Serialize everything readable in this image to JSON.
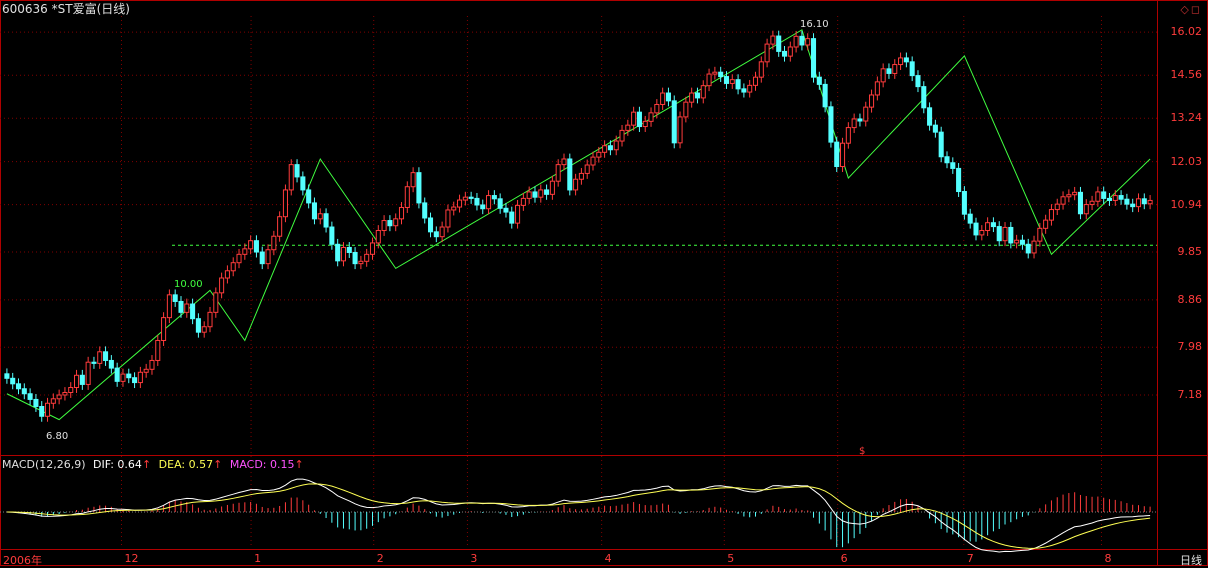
{
  "window": {
    "title": "600636 *ST爱富(日线)",
    "buttons": "◇◻",
    "period_label": "日线"
  },
  "price_axis": {
    "ticks": [
      "16.02",
      "14.56",
      "13.24",
      "12.03",
      "10.94",
      "9.85",
      "8.86",
      "7.98",
      "7.18"
    ],
    "min": 6.8,
    "max": 16.1,
    "log_scale": true
  },
  "time_axis": {
    "ticks": [
      "2006年",
      "12",
      "1",
      "2",
      "3",
      "4",
      "5",
      "6",
      "7",
      "8"
    ]
  },
  "annotations": {
    "reference_line_label": "10.00",
    "low_label": "6.80",
    "high_label": "16.10",
    "marker": "$"
  },
  "macd": {
    "name": "MACD(12,26,9)",
    "dif_label": "DIF: 0.64",
    "dea_label": "DEA: 0.57",
    "macd_label": "MACD: 0.15",
    "arrow": "↑"
  },
  "colors": {
    "up": "#ff3c3c",
    "down": "#54ffff",
    "zigzag": "#40ff40",
    "dif": "#ffffff",
    "dea": "#ffff54",
    "macd_label": "#ff54ff",
    "grid": "#800000",
    "axis": "#b00000"
  },
  "chart_data": {
    "type": "candlestick",
    "zigzag": [
      7.2,
      6.8,
      9.05,
      8.1,
      12.1,
      9.5,
      16.1,
      11.6,
      15.2,
      9.8,
      12.1
    ],
    "reference_line": 10.0,
    "closes": [
      7.45,
      7.36,
      7.28,
      7.2,
      7.11,
      7.0,
      6.85,
      7.05,
      7.12,
      7.18,
      7.22,
      7.3,
      7.5,
      7.35,
      7.72,
      7.7,
      7.9,
      7.75,
      7.62,
      7.4,
      7.52,
      7.46,
      7.38,
      7.55,
      7.6,
      7.75,
      8.1,
      8.52,
      8.96,
      8.83,
      8.62,
      8.78,
      8.5,
      8.25,
      8.35,
      8.62,
      9.0,
      9.3,
      9.45,
      9.62,
      9.8,
      9.92,
      10.1,
      9.85,
      9.6,
      9.9,
      10.2,
      10.65,
      11.3,
      11.95,
      11.63,
      11.3,
      10.98,
      10.6,
      10.72,
      10.41,
      10.02,
      9.66,
      9.95,
      9.84,
      9.6,
      9.65,
      9.8,
      10.05,
      10.33,
      10.56,
      10.44,
      10.6,
      10.87,
      11.38,
      11.74,
      10.98,
      10.62,
      10.3,
      10.19,
      10.41,
      10.81,
      10.88,
      11.05,
      11.12,
      11.09,
      10.93,
      10.84,
      11.16,
      11.08,
      10.85,
      10.76,
      10.5,
      10.92,
      11.09,
      11.25,
      11.12,
      11.3,
      11.19,
      11.52,
      11.95,
      12.1,
      11.3,
      11.57,
      11.72,
      11.94,
      12.15,
      12.28,
      12.46,
      12.35,
      12.59,
      12.89,
      13.04,
      13.42,
      13.0,
      13.15,
      13.4,
      13.65,
      14.0,
      13.76,
      12.54,
      13.28,
      13.72,
      14.0,
      13.85,
      14.23,
      14.6,
      14.66,
      14.52,
      14.3,
      14.42,
      14.13,
      14.03,
      14.24,
      14.5,
      15.0,
      15.6,
      15.88,
      15.35,
      15.19,
      15.5,
      15.87,
      15.57,
      15.79,
      14.5,
      14.27,
      13.58,
      12.56,
      11.9,
      12.53,
      12.97,
      13.22,
      13.16,
      13.57,
      13.94,
      14.35,
      14.77,
      14.62,
      14.91,
      15.13,
      15.0,
      14.55,
      14.2,
      13.55,
      13.04,
      12.84,
      12.16,
      12.0,
      11.85,
      11.26,
      10.71,
      10.5,
      10.23,
      10.33,
      10.51,
      10.42,
      10.1,
      10.4,
      10.05,
      10.11,
      10.02,
      9.83,
      10.09,
      10.38,
      10.57,
      10.82,
      10.95,
      11.13,
      11.18,
      11.24,
      10.72,
      10.94,
      11.02,
      11.25,
      11.09,
      11.04,
      11.16,
      11.07,
      10.95,
      10.89,
      11.08,
      10.96,
      11.04
    ]
  }
}
